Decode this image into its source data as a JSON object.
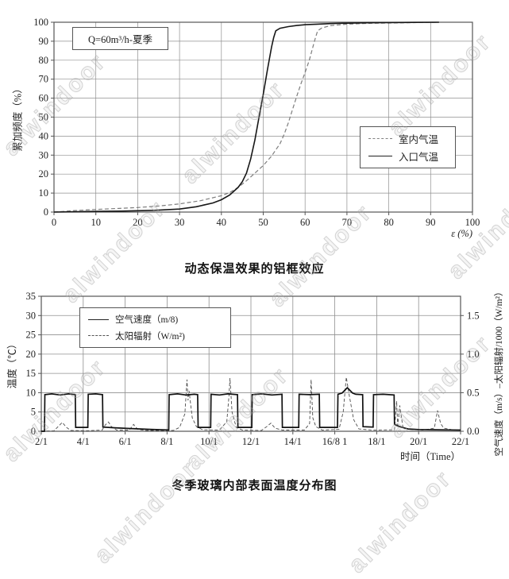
{
  "watermark": {
    "text": "alwindoor"
  },
  "chart_data": [
    {
      "type": "line",
      "title": "动态保温效果的铝框效应",
      "annotation": "Q=60m³/h-夏季",
      "xlabel": "ε (%)",
      "ylabel": "累加频度（%）",
      "xlim": [
        0,
        100
      ],
      "ylim": [
        0,
        100
      ],
      "xticks": [
        0,
        10,
        20,
        30,
        40,
        50,
        60,
        70,
        80,
        90,
        100
      ],
      "yticks": [
        0,
        10,
        20,
        30,
        40,
        50,
        60,
        70,
        80,
        90,
        100
      ],
      "grid": true,
      "legend_position": "right-middle",
      "series": [
        {
          "name": "室内气温",
          "style": "dashed",
          "points": [
            [
              0,
              0
            ],
            [
              5,
              0.8
            ],
            [
              10,
              1.4
            ],
            [
              15,
              1.9
            ],
            [
              20,
              2.4
            ],
            [
              25,
              3.2
            ],
            [
              30,
              4.3
            ],
            [
              35,
              6.0
            ],
            [
              40,
              8.6
            ],
            [
              42,
              10.3
            ],
            [
              44,
              13.0
            ],
            [
              46,
              16.5
            ],
            [
              48,
              20.5
            ],
            [
              50,
              24.5
            ],
            [
              52,
              29.5
            ],
            [
              54,
              36.0
            ],
            [
              55,
              41.0
            ],
            [
              56,
              47.0
            ],
            [
              57,
              54.0
            ],
            [
              58,
              61.0
            ],
            [
              59,
              67.5
            ],
            [
              60,
              73.5
            ],
            [
              61,
              80.0
            ],
            [
              62,
              88.0
            ],
            [
              62.5,
              92.0
            ],
            [
              63,
              95.5
            ],
            [
              64,
              97.0
            ],
            [
              66,
              98.2
            ],
            [
              70,
              99.0
            ],
            [
              75,
              99.4
            ],
            [
              80,
              99.6
            ],
            [
              86,
              99.8
            ],
            [
              92,
              100
            ]
          ]
        },
        {
          "name": "入口气温",
          "style": "solid",
          "points": [
            [
              0,
              0
            ],
            [
              8,
              0.3
            ],
            [
              16,
              0.5
            ],
            [
              24,
              0.9
            ],
            [
              30,
              1.6
            ],
            [
              34,
              2.8
            ],
            [
              38,
              4.8
            ],
            [
              40,
              6.5
            ],
            [
              42,
              9.0
            ],
            [
              44,
              13.0
            ],
            [
              45,
              16.0
            ],
            [
              46,
              20.5
            ],
            [
              47,
              28.0
            ],
            [
              48,
              38.0
            ],
            [
              49,
              50.0
            ],
            [
              50,
              62.0
            ],
            [
              51,
              75.0
            ],
            [
              52,
              87.0
            ],
            [
              52.5,
              92.0
            ],
            [
              53,
              95.5
            ],
            [
              54,
              96.8
            ],
            [
              56,
              97.7
            ],
            [
              58,
              98.3
            ],
            [
              60,
              98.7
            ],
            [
              63,
              99.0
            ],
            [
              66,
              99.3
            ],
            [
              70,
              99.5
            ],
            [
              75,
              99.7
            ],
            [
              80,
              99.8
            ],
            [
              86,
              99.9
            ],
            [
              92,
              100
            ]
          ]
        }
      ]
    },
    {
      "type": "line",
      "title": "冬季玻璃内部表面温度分布图",
      "xlabel": "时间（Time）",
      "ylabel_left": "温度（℃）",
      "ylabel_right": "空气速度（m/s）–太阳辐射/1000（W/m²）",
      "xtick_labels": [
        "2/1",
        "4/1",
        "6/1",
        "8/1",
        "10/1",
        "12/1",
        "14/1",
        "16/8 1",
        "18/1",
        "20/1",
        "22/1"
      ],
      "xtick_days": [
        2,
        4,
        6,
        8,
        10,
        12,
        14,
        16,
        18,
        20,
        22
      ],
      "ylim_left": [
        0,
        35
      ],
      "yticks_left": [
        0,
        5,
        10,
        15,
        20,
        25,
        30,
        35
      ],
      "yticks_right": [
        "0.0",
        "0.5",
        "1.0",
        "1.5"
      ],
      "yticks_right_values": [
        0,
        0.5,
        1.0,
        1.5
      ],
      "right_axis_note": "right value r maps to left value r*20",
      "grid": true,
      "series": [
        {
          "name": "空气速度（m/8)",
          "style": "solid",
          "points": [
            [
              2,
              0
            ],
            [
              2.15,
              0
            ],
            [
              2.17,
              9.5
            ],
            [
              2.5,
              9.7
            ],
            [
              2.9,
              9.4
            ],
            [
              3.3,
              9.7
            ],
            [
              3.62,
              9.5
            ],
            [
              3.64,
              1.0
            ],
            [
              4.22,
              1.0
            ],
            [
              4.24,
              9.6
            ],
            [
              4.6,
              9.7
            ],
            [
              4.92,
              9.5
            ],
            [
              4.94,
              1.1
            ],
            [
              5.5,
              0.9
            ],
            [
              6.3,
              0.7
            ],
            [
              7.2,
              0.5
            ],
            [
              8.08,
              0.35
            ],
            [
              8.1,
              9.5
            ],
            [
              8.5,
              9.7
            ],
            [
              8.9,
              9.4
            ],
            [
              9.3,
              9.6
            ],
            [
              9.46,
              9.5
            ],
            [
              9.48,
              1.0
            ],
            [
              10.08,
              1.0
            ],
            [
              10.1,
              9.6
            ],
            [
              10.5,
              9.4
            ],
            [
              10.9,
              9.7
            ],
            [
              11.36,
              9.5
            ],
            [
              11.38,
              1.0
            ],
            [
              12.04,
              1.0
            ],
            [
              12.06,
              9.5
            ],
            [
              12.5,
              9.7
            ],
            [
              13.0,
              9.4
            ],
            [
              13.48,
              9.6
            ],
            [
              13.5,
              1.0
            ],
            [
              14.28,
              1.0
            ],
            [
              14.3,
              9.6
            ],
            [
              14.8,
              9.5
            ],
            [
              15.26,
              9.6
            ],
            [
              15.28,
              1.0
            ],
            [
              16.13,
              1.0
            ],
            [
              16.15,
              9.6
            ],
            [
              16.35,
              9.9
            ],
            [
              16.6,
              11.3
            ],
            [
              16.85,
              9.9
            ],
            [
              17.0,
              9.6
            ],
            [
              17.33,
              9.5
            ],
            [
              17.35,
              1.2
            ],
            [
              17.83,
              1.1
            ],
            [
              17.85,
              9.5
            ],
            [
              18.3,
              9.6
            ],
            [
              18.83,
              9.4
            ],
            [
              18.85,
              1.8
            ],
            [
              19.1,
              1.2
            ],
            [
              19.5,
              0.6
            ],
            [
              20.0,
              0.45
            ],
            [
              20.8,
              0.4
            ],
            [
              21.5,
              0.35
            ],
            [
              22,
              0.3
            ]
          ]
        },
        {
          "name": "太阳辐射（W/m²)",
          "style": "dashed",
          "points": [
            [
              2,
              0.05
            ],
            [
              2.6,
              0.1
            ],
            [
              2.8,
              1.2
            ],
            [
              3.0,
              2.3
            ],
            [
              3.2,
              1.0
            ],
            [
              3.4,
              0.2
            ],
            [
              4.2,
              0.15
            ],
            [
              4.9,
              0.3
            ],
            [
              5.05,
              1.6
            ],
            [
              5.2,
              2.4
            ],
            [
              5.35,
              1.2
            ],
            [
              5.6,
              0.3
            ],
            [
              6.2,
              0.3
            ],
            [
              6.4,
              1.8
            ],
            [
              6.6,
              0.5
            ],
            [
              7.0,
              0.2
            ],
            [
              8.3,
              0.2
            ],
            [
              8.6,
              1.0
            ],
            [
              8.85,
              4.5
            ],
            [
              8.95,
              13.4
            ],
            [
              9.0,
              8.0
            ],
            [
              9.05,
              10.5
            ],
            [
              9.2,
              3.5
            ],
            [
              9.4,
              1.2
            ],
            [
              9.7,
              0.4
            ],
            [
              10.5,
              0.3
            ],
            [
              10.85,
              2.5
            ],
            [
              10.95,
              9.0
            ],
            [
              11.0,
              13.8
            ],
            [
              11.1,
              5.0
            ],
            [
              11.3,
              1.0
            ],
            [
              11.6,
              0.3
            ],
            [
              12.5,
              0.2
            ],
            [
              12.75,
              1.2
            ],
            [
              12.95,
              2.1
            ],
            [
              13.15,
              0.8
            ],
            [
              13.5,
              0.3
            ],
            [
              14.55,
              0.3
            ],
            [
              14.8,
              2.0
            ],
            [
              14.87,
              13.4
            ],
            [
              14.95,
              3.5
            ],
            [
              15.1,
              1.2
            ],
            [
              15.4,
              0.3
            ],
            [
              16.2,
              0.5
            ],
            [
              16.4,
              5.0
            ],
            [
              16.55,
              14.0
            ],
            [
              16.7,
              9.0
            ],
            [
              16.9,
              3.0
            ],
            [
              17.15,
              0.6
            ],
            [
              17.8,
              0.3
            ],
            [
              18.85,
              0.4
            ],
            [
              18.95,
              7.8
            ],
            [
              19.0,
              1.5
            ],
            [
              19.1,
              6.7
            ],
            [
              19.25,
              1.0
            ],
            [
              19.5,
              0.5
            ],
            [
              20.2,
              0.3
            ],
            [
              20.75,
              0.8
            ],
            [
              20.9,
              5.4
            ],
            [
              21.05,
              2.0
            ],
            [
              21.2,
              0.8
            ],
            [
              21.6,
              0.4
            ],
            [
              22,
              0.25
            ]
          ]
        }
      ]
    }
  ]
}
